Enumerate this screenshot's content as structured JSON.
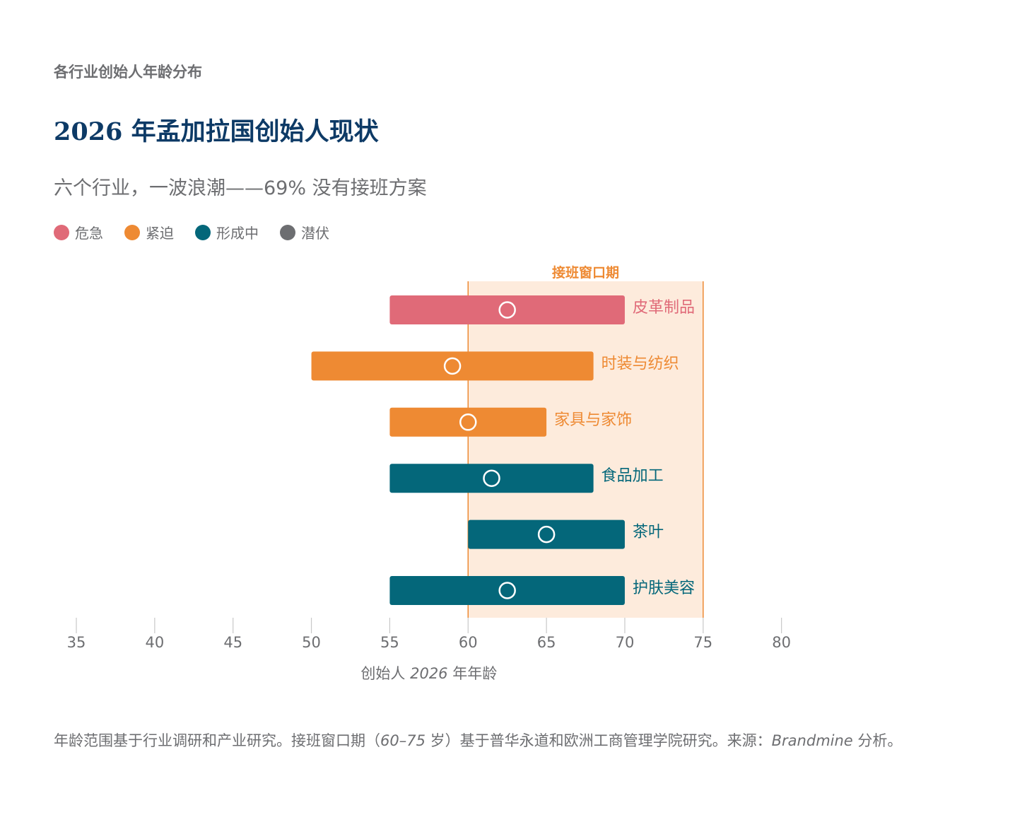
{
  "kicker": "各行业创始人年龄分布",
  "title": "2026 年孟加拉国创始人现状",
  "subtitle": "六个行业，一波浪潮——69% 没有接班方案",
  "legend": [
    {
      "label": "危急",
      "color": "#e06a78"
    },
    {
      "label": "紧迫",
      "color": "#ee8a33"
    },
    {
      "label": "形成中",
      "color": "#04677a"
    },
    {
      "label": "潜伏",
      "color": "#6d6e71"
    }
  ],
  "colors": {
    "window_fill": "#fdebdc",
    "window_line": "#ee8a33",
    "axis": "#6d6e71"
  },
  "chart_data": {
    "type": "range-bar",
    "xlabel_parts": [
      "创始人 ",
      "2026",
      " 年年龄"
    ],
    "xlim": [
      35,
      80
    ],
    "xticks": [
      35,
      40,
      45,
      50,
      55,
      60,
      65,
      70,
      75,
      80
    ],
    "window": {
      "label": "接班窗口期",
      "start": 60,
      "end": 75
    },
    "series": [
      {
        "name": "皮革制品",
        "min": 55,
        "max": 70,
        "marker": 62.5,
        "status": "危急",
        "color": "#e06a78"
      },
      {
        "name": "时装与纺织",
        "min": 50,
        "max": 68,
        "marker": 59,
        "status": "紧迫",
        "color": "#ee8a33"
      },
      {
        "name": "家具与家饰",
        "min": 55,
        "max": 65,
        "marker": 60,
        "status": "紧迫",
        "color": "#ee8a33"
      },
      {
        "name": "食品加工",
        "min": 55,
        "max": 68,
        "marker": 61.5,
        "status": "形成中",
        "color": "#04677a"
      },
      {
        "name": "茶叶",
        "min": 60,
        "max": 70,
        "marker": 65,
        "status": "形成中",
        "color": "#04677a"
      },
      {
        "name": "护肤美容",
        "min": 55,
        "max": 70,
        "marker": 62.5,
        "status": "形成中",
        "color": "#04677a"
      }
    ]
  },
  "note": {
    "part1": "年龄范围基于行业调研和产业研究。接班窗口期（",
    "range": "60–75",
    "part2": " 岁）基于普华永道和欧洲工商管理学院研究。来源：",
    "source": "Brandmine",
    "part3": " 分析。"
  }
}
